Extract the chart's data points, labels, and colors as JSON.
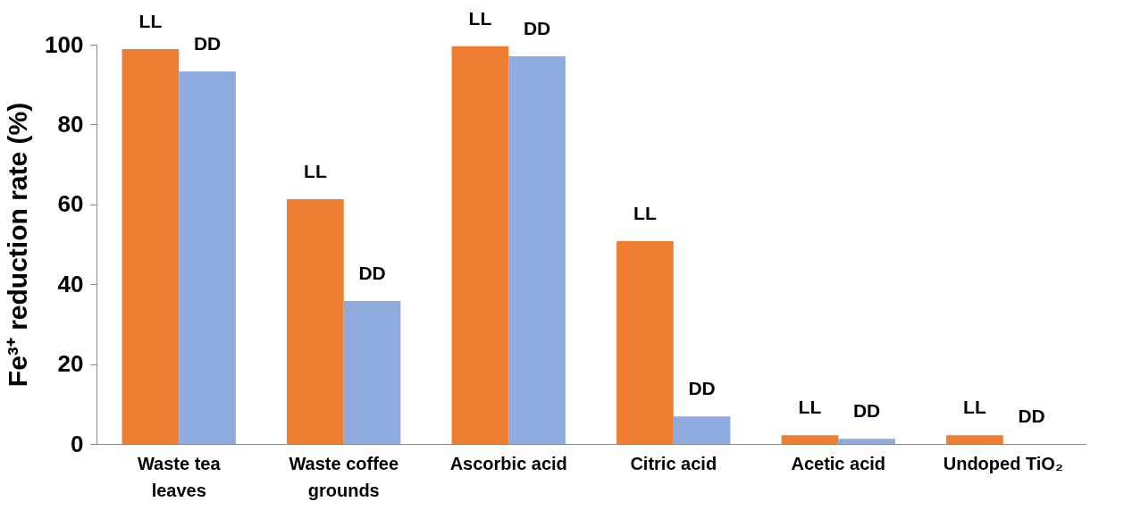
{
  "chart_data": {
    "type": "bar",
    "ylabel": "Fe³⁺ reduction rate (%)",
    "categories": [
      "Waste tea leaves",
      "Waste coffee grounds",
      "Ascorbic acid",
      "Citric acid",
      "Acetic acid",
      "Undoped TiO₂"
    ],
    "series": [
      {
        "name": "LL",
        "color": "#ed7d31",
        "values": [
          98.9,
          61.3,
          99.6,
          50.8,
          2.2,
          2.2
        ]
      },
      {
        "name": "DD",
        "color": "#8faadc",
        "values": [
          93.3,
          35.8,
          97.1,
          6.9,
          1.3,
          0
        ]
      }
    ],
    "ylim": [
      0,
      100
    ],
    "yticks": [
      0,
      20,
      40,
      60,
      80,
      100
    ],
    "grid": false,
    "legend": false
  }
}
